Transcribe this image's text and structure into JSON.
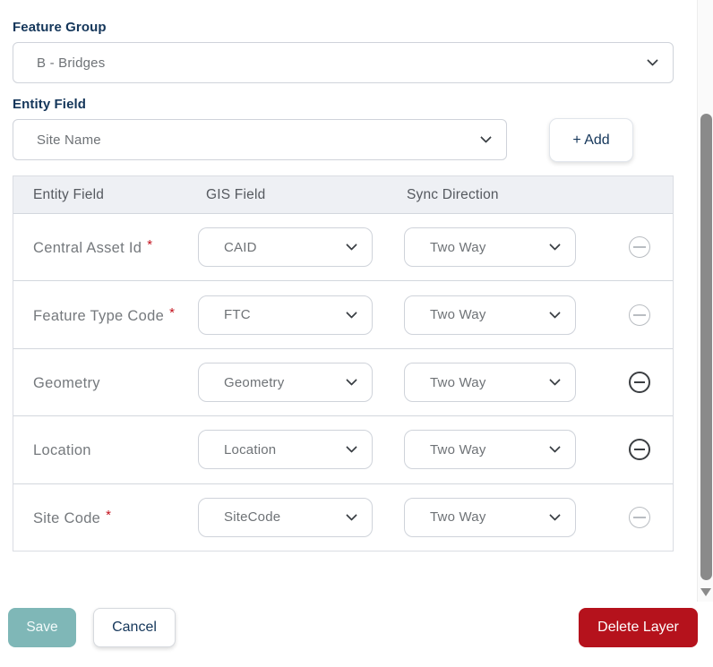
{
  "form": {
    "feature_group": {
      "label": "Feature Group",
      "value": "B - Bridges"
    },
    "entity_field": {
      "label": "Entity Field",
      "value": "Site Name"
    },
    "add_button_label": "+ Add"
  },
  "table": {
    "headers": [
      "Entity Field",
      "GIS Field",
      "Sync Direction"
    ],
    "rows": [
      {
        "entity_field": "Central Asset Id",
        "required_marker": "*",
        "gis_field": "CAID",
        "sync_direction": "Two Way",
        "remove_enabled": false
      },
      {
        "entity_field": "Feature Type Code",
        "required_marker": "*",
        "gis_field": "FTC",
        "sync_direction": "Two Way",
        "remove_enabled": false
      },
      {
        "entity_field": "Geometry",
        "required_marker": "",
        "gis_field": "Geometry",
        "sync_direction": "Two Way",
        "remove_enabled": true
      },
      {
        "entity_field": "Location",
        "required_marker": "",
        "gis_field": "Location",
        "sync_direction": "Two Way",
        "remove_enabled": true
      },
      {
        "entity_field": "Site Code",
        "required_marker": "*",
        "gis_field": "SiteCode",
        "sync_direction": "Two Way",
        "remove_enabled": false
      }
    ]
  },
  "footer": {
    "save_label": "Save",
    "cancel_label": "Cancel",
    "delete_layer_label": "Delete Layer"
  },
  "colors": {
    "label_navy": "#14365a",
    "save_teal": "#7fb7b7",
    "delete_red": "#b5121c",
    "required_red": "#c3111c",
    "header_bg": "#eef0f4"
  }
}
